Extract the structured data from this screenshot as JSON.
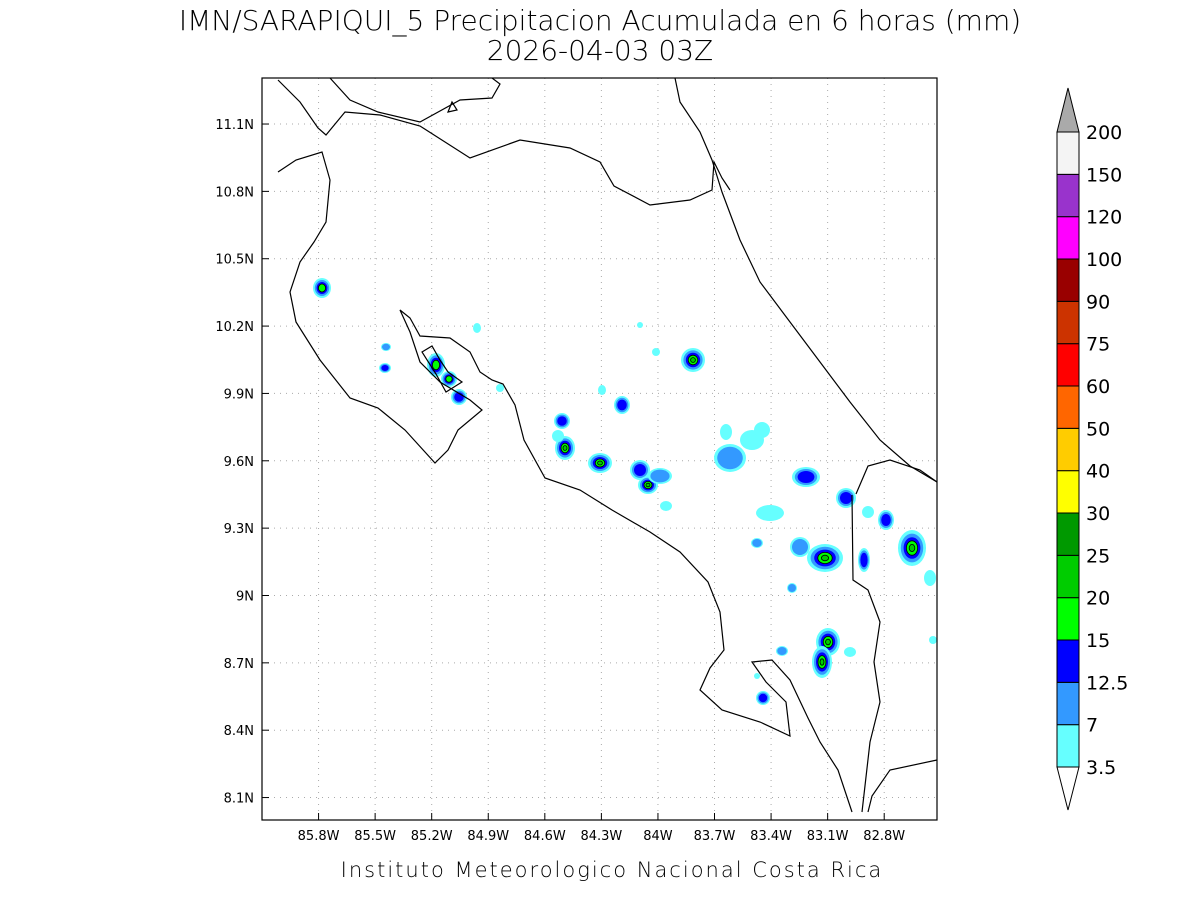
{
  "chart_data": {
    "type": "map",
    "title": "IMN/SARAPIQUI_5 Precipitacion Acumulada en 6 horas (mm)",
    "subtitle": "2026-04-03 03Z",
    "footer": "Instituto Meteorologico Nacional Costa Rica",
    "xlim": [
      -86.1,
      -82.52
    ],
    "ylim": [
      8.0,
      11.305
    ],
    "grid": true,
    "xticks": [
      {
        "value": -85.8,
        "label": "85.8W"
      },
      {
        "value": -85.5,
        "label": "85.5W"
      },
      {
        "value": -85.2,
        "label": "85.2W"
      },
      {
        "value": -84.9,
        "label": "84.9W"
      },
      {
        "value": -84.6,
        "label": "84.6W"
      },
      {
        "value": -84.3,
        "label": "84.3W"
      },
      {
        "value": -84.0,
        "label": "84W"
      },
      {
        "value": -83.7,
        "label": "83.7W"
      },
      {
        "value": -83.4,
        "label": "83.4W"
      },
      {
        "value": -83.1,
        "label": "83.1W"
      },
      {
        "value": -82.8,
        "label": "82.8W"
      }
    ],
    "yticks": [
      {
        "value": 8.1,
        "label": "8.1N"
      },
      {
        "value": 8.4,
        "label": "8.4N"
      },
      {
        "value": 8.7,
        "label": "8.7N"
      },
      {
        "value": 9.0,
        "label": "9N"
      },
      {
        "value": 9.3,
        "label": "9.3N"
      },
      {
        "value": 9.6,
        "label": "9.6N"
      },
      {
        "value": 9.9,
        "label": "9.9N"
      },
      {
        "value": 10.2,
        "label": "10.2N"
      },
      {
        "value": 10.5,
        "label": "10.5N"
      },
      {
        "value": 10.8,
        "label": "10.8N"
      },
      {
        "value": 11.1,
        "label": "11.1N"
      }
    ],
    "levels": [
      3.5,
      7,
      12.5,
      15,
      20,
      25,
      30,
      40,
      50,
      60,
      75,
      90,
      100,
      120,
      150,
      200
    ],
    "colors": [
      "#66ffff",
      "#3399ff",
      "#0000ff",
      "#00ff00",
      "#00cc00",
      "#009900",
      "#ffff00",
      "#ffcc00",
      "#ff6600",
      "#ff0000",
      "#cc3300",
      "#990000",
      "#ff00ff",
      "#9933cc",
      "#f4f4f4"
    ],
    "under_color": "#ffffff",
    "over_color": "#aaaaaa"
  }
}
